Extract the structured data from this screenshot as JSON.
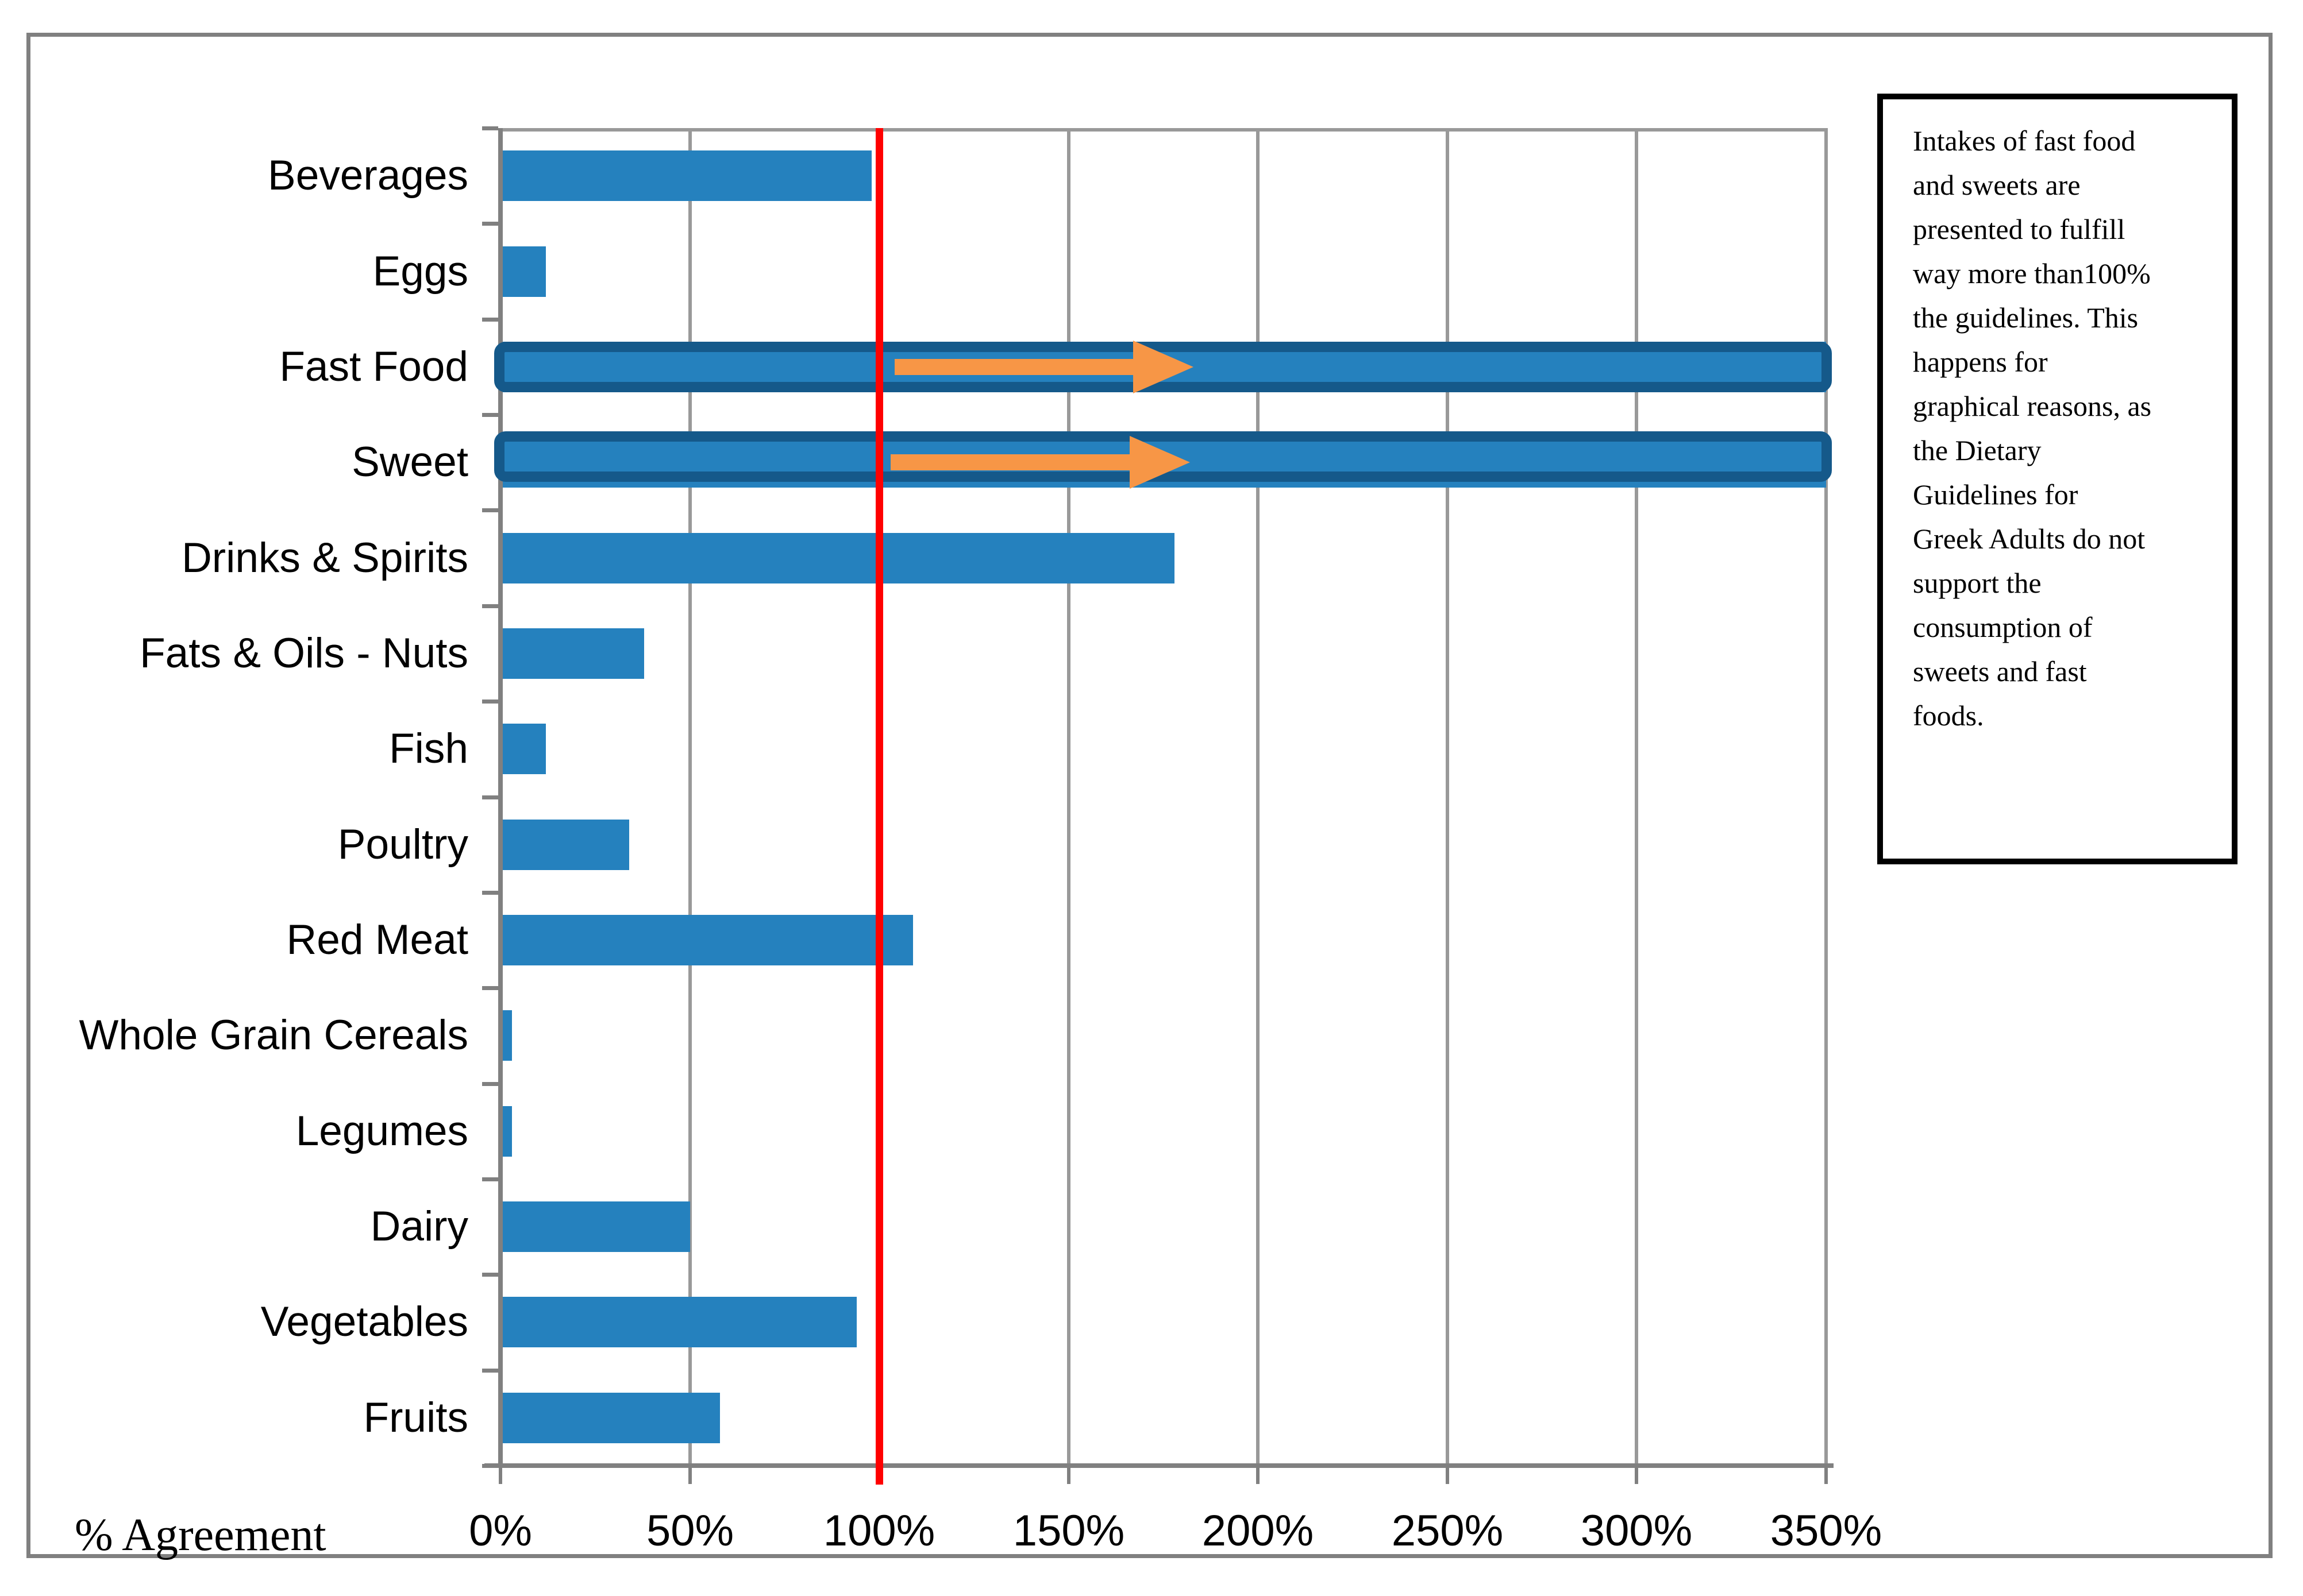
{
  "page": {
    "background": "#FFFFFF",
    "outer_border_color": "#808080"
  },
  "chart_data": {
    "type": "bar",
    "orientation": "horizontal",
    "title": "",
    "xlabel": "% Agreement",
    "categories": [
      "Beverages",
      "Eggs",
      "Fast Food",
      "Sweet",
      "Drinks & Spirits",
      "Fats & Oils - Nuts",
      "Fish",
      "Poultry",
      "Red Meat",
      "Whole Grain Cereals",
      "Legumes",
      "Dairy",
      "Vegetables",
      "Fruits"
    ],
    "values": [
      98,
      12,
      350,
      350,
      178,
      38,
      12,
      34,
      109,
      3,
      3,
      50,
      94,
      58
    ],
    "xlim": [
      0,
      350
    ],
    "x_tick_step": 50,
    "x_tick_labels": [
      "0%",
      "50%",
      "100%",
      "150%",
      "200%",
      "250%",
      "300%",
      "350%"
    ],
    "grid": true,
    "legend": "none",
    "bar_color": "#2581BE",
    "gridline_color": "#999999",
    "axis_color": "#808080",
    "emphasized_bars": [
      {
        "category": "Fast Food",
        "border_color": "#15598A",
        "sliver": false
      },
      {
        "category": "Sweet",
        "border_color": "#15598A",
        "sliver": true
      }
    ],
    "reference_line": {
      "value": 100,
      "color": "#FF0000"
    },
    "arrows": [
      {
        "category": "Fast Food",
        "from": 104,
        "to": 183
      },
      {
        "category": "Sweet",
        "from": 103,
        "to": 182
      }
    ],
    "arrow_color": "#F79646"
  },
  "annotation_box": {
    "border_color": "#000000",
    "text": "Intakes of fast food\nand sweets are\npresented to fulfill\nway more than100%\nthe guidelines. This\nhappens for\ngraphical reasons, as\nthe Dietary\nGuidelines for\nGreek Adults do not\nsupport the\nconsumption of\nsweets and fast\nfoods."
  }
}
